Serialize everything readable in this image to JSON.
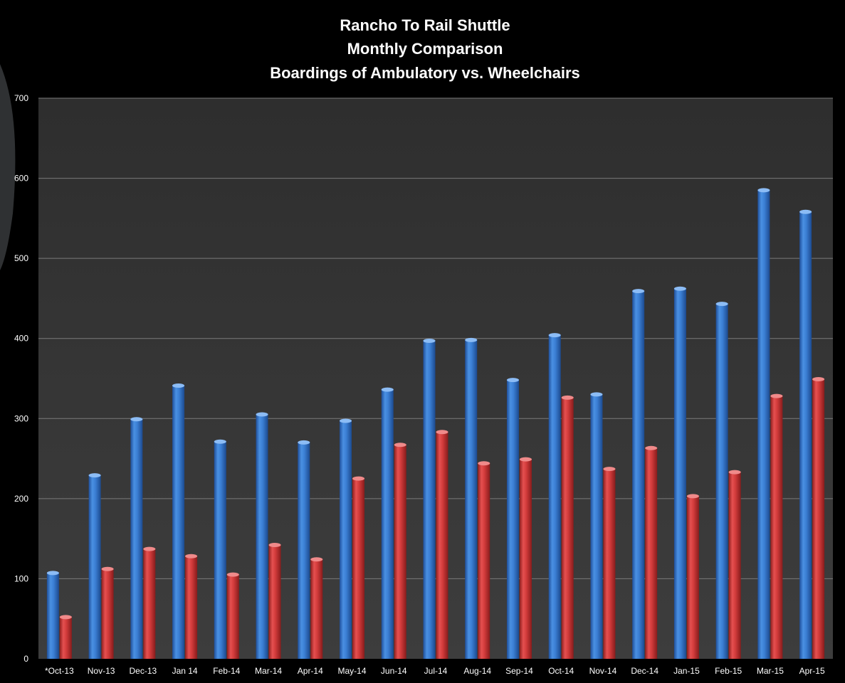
{
  "chart_data": {
    "type": "bar",
    "title": "Rancho To Rail Shuttle",
    "subtitle_lines": [
      "Monthly Comparison",
      "Boardings of Ambulatory vs. Wheelchairs"
    ],
    "xlabel": "",
    "ylabel": "",
    "ylim": [
      0,
      700
    ],
    "yticks": [
      0,
      100,
      200,
      300,
      400,
      500,
      600,
      700
    ],
    "grid": true,
    "legend": "none",
    "categories": [
      "*Oct-13",
      "Nov-13",
      "Dec-13",
      "Jan 14",
      "Feb-14",
      "Mar-14",
      "Apr-14",
      "May-14",
      "Jun-14",
      "Jul-14",
      "Aug-14",
      "Sep-14",
      "Oct-14",
      "Nov-14",
      "Dec-14",
      "Jan-15",
      "Feb-15",
      "Mar-15",
      "Apr-15"
    ],
    "series": [
      {
        "color": "#3b7fd4",
        "values": [
          108,
          230,
          300,
          342,
          272,
          306,
          271,
          298,
          337,
          398,
          399,
          349,
          405,
          331,
          460,
          463,
          444,
          586,
          559
        ]
      },
      {
        "color": "#d23b3b",
        "values": [
          53,
          113,
          138,
          129,
          106,
          143,
          125,
          226,
          268,
          284,
          245,
          250,
          327,
          238,
          264,
          204,
          234,
          329,
          350
        ]
      }
    ]
  },
  "colors": {
    "background": "#000000",
    "plot_area": "#3a3a3a",
    "grid": "#7a7a7a",
    "text": "#ffffff"
  }
}
